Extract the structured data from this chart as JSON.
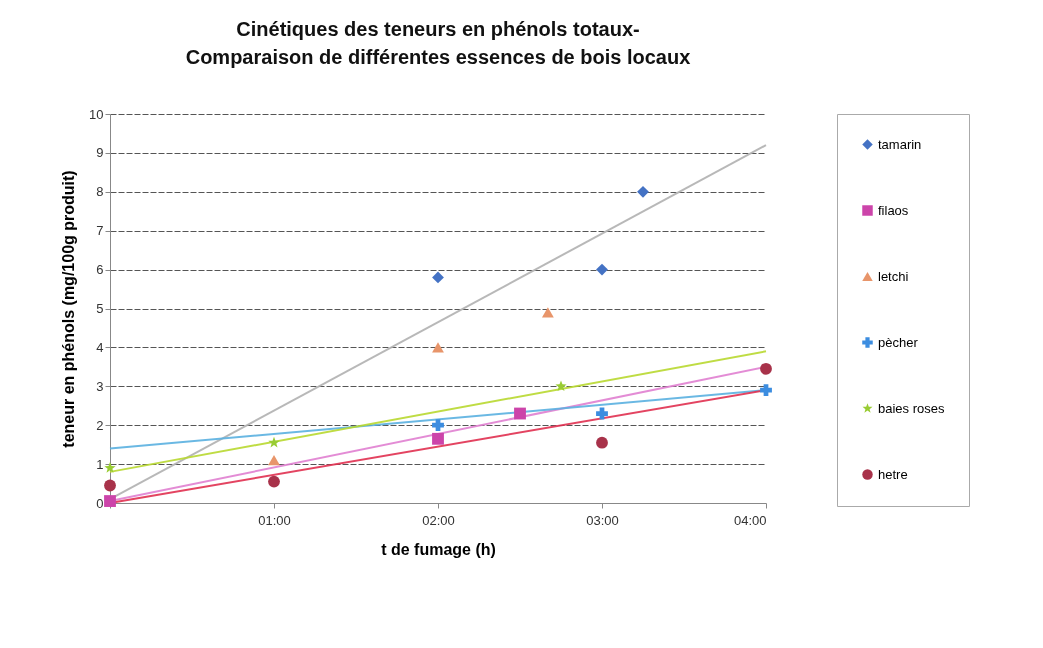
{
  "chart_data": {
    "type": "scatter",
    "title": "Cinétiques des teneurs en phénols totaux-\nComparaison de différentes essences de bois locaux",
    "xlabel": "t de fumage (h)",
    "ylabel": "teneur en phénols (mg/100g produit)",
    "xlim": [
      0,
      4
    ],
    "xticks": [
      {
        "value": 0,
        "label": null
      },
      {
        "value": 1,
        "label": "01:00"
      },
      {
        "value": 2,
        "label": "02:00"
      },
      {
        "value": 3,
        "label": "03:00"
      },
      {
        "value": 4,
        "label": "04:00"
      }
    ],
    "ylim": [
      0,
      10
    ],
    "yticks": [
      0,
      1,
      2,
      3,
      4,
      5,
      6,
      7,
      8,
      9,
      10
    ],
    "grid": "y",
    "legend": "right",
    "series": [
      {
        "name": "tamarin",
        "color": "#4472c4",
        "marker": "diamond",
        "x": [
          2,
          3,
          3.25
        ],
        "values": [
          5.8,
          6.0,
          8.0
        ]
      },
      {
        "name": "filaos",
        "color": "#cc44aa",
        "marker": "square",
        "x": [
          0,
          2,
          2.5
        ],
        "values": [
          0.05,
          1.65,
          2.3
        ]
      },
      {
        "name": "letchi",
        "color": "#e8956a",
        "marker": "triangle",
        "x": [
          1,
          2,
          2.67
        ],
        "values": [
          1.1,
          4.0,
          4.9
        ]
      },
      {
        "name": "pècher",
        "color": "#3c8de0",
        "marker": "cross",
        "x": [
          2,
          3,
          4
        ],
        "values": [
          2.0,
          2.3,
          2.9
        ]
      },
      {
        "name": "baies roses",
        "color": "#99cc33",
        "marker": "star",
        "x": [
          0,
          1,
          2.75
        ],
        "values": [
          0.9,
          1.55,
          3.0
        ]
      },
      {
        "name": "hetre",
        "color": "#a8324a",
        "marker": "circle",
        "x": [
          0,
          1,
          3,
          4
        ],
        "values": [
          0.45,
          0.55,
          1.55,
          3.45
        ]
      },
      {
        "type": "line",
        "color": "#b0b0b0",
        "x": [
          0,
          4
        ],
        "values": [
          0.1,
          9.2
        ]
      },
      {
        "type": "line",
        "color": "#e080d0",
        "x": [
          0,
          4
        ],
        "values": [
          0.05,
          3.5
        ]
      },
      {
        "type": "line",
        "color": "#5ab0e0",
        "x": [
          0,
          4
        ],
        "values": [
          1.4,
          2.9
        ]
      },
      {
        "type": "line",
        "color": "#b8d830",
        "x": [
          0,
          4
        ],
        "values": [
          0.8,
          3.9
        ]
      },
      {
        "type": "line",
        "color": "#e03050",
        "x": [
          0,
          4
        ],
        "values": [
          0.0,
          2.9
        ]
      }
    ]
  }
}
